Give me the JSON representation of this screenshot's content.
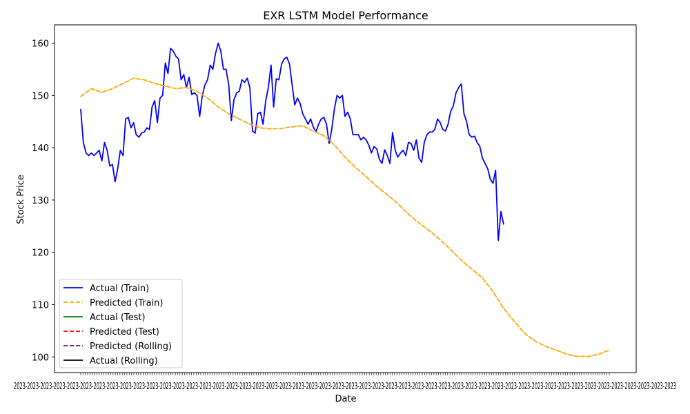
{
  "chart_data": {
    "type": "line",
    "title": "EXR LSTM Model Performance",
    "xlabel": "Date",
    "ylabel": "Stock Price",
    "xlim": [
      0,
      200
    ],
    "ylim": [
      97,
      163.5
    ],
    "yticks": [
      100,
      110,
      120,
      130,
      140,
      150,
      160
    ],
    "grid": false,
    "legend_position": "lower-left",
    "series": [
      {
        "name": "Actual (Train)",
        "color": "#0000ff",
        "dash": "solid",
        "x": [
          0,
          1,
          2,
          3,
          4,
          5,
          6,
          7,
          8,
          9,
          10,
          11,
          12,
          13,
          14,
          15,
          16,
          17,
          18,
          19,
          20,
          21,
          22,
          23,
          24,
          25,
          26,
          27,
          28,
          29,
          30,
          31,
          32,
          33,
          34,
          35,
          36,
          37,
          38,
          39,
          40,
          41,
          42,
          43,
          44,
          45,
          46,
          47,
          48,
          49,
          50,
          51,
          52,
          53,
          54,
          55,
          56,
          57,
          58,
          59,
          60,
          61,
          62,
          63,
          64,
          65,
          66,
          67,
          68,
          69,
          70,
          71,
          72,
          73,
          74,
          75,
          76,
          77,
          78,
          79,
          80,
          81,
          82,
          83,
          84,
          85,
          86,
          87,
          88,
          89,
          90,
          91,
          92,
          93,
          94,
          95,
          96,
          97,
          98,
          99,
          100,
          101,
          102,
          103,
          104,
          105,
          106,
          107,
          108,
          109,
          110,
          111,
          112,
          113,
          114,
          115,
          116,
          117,
          118,
          119,
          120,
          121,
          122,
          123,
          124,
          125,
          126,
          127,
          128,
          129,
          130,
          131,
          132,
          133,
          134,
          135,
          136,
          137,
          138,
          139,
          140,
          141,
          142,
          143,
          144,
          145,
          146,
          147,
          148,
          149,
          150,
          151,
          152,
          153,
          154,
          155,
          156,
          157,
          158,
          159,
          160
        ],
        "y": [
          147.3,
          141.0,
          139.0,
          138.5,
          139.0,
          138.5,
          139.0,
          139.5,
          137.5,
          141.0,
          139.5,
          136.5,
          136.8,
          133.5,
          136.0,
          139.5,
          138.5,
          145.5,
          145.8,
          143.8,
          144.8,
          142.5,
          142.0,
          142.8,
          143.0,
          143.8,
          143.5,
          147.8,
          149.0,
          144.8,
          149.5,
          150.0,
          156.2,
          154.2,
          159.0,
          158.5,
          157.5,
          157.0,
          153.0,
          154.0,
          151.5,
          153.5,
          150.2,
          150.5,
          150.0,
          146.0,
          150.0,
          152.0,
          153.0,
          155.8,
          155.0,
          158.0,
          160.0,
          158.5,
          155.0,
          155.0,
          152.0,
          145.2,
          149.2,
          150.5,
          150.8,
          153.0,
          152.5,
          153.3,
          151.5,
          143.2,
          142.8,
          146.5,
          146.8,
          144.5,
          149.0,
          151.5,
          155.8,
          147.8,
          153.2,
          153.0,
          156.0,
          157.0,
          157.3,
          156.0,
          152.0,
          148.2,
          149.5,
          148.5,
          146.5,
          145.5,
          144.5,
          145.5,
          144.0,
          143.0,
          144.5,
          145.5,
          145.8,
          144.5,
          140.8,
          143.5,
          147.5,
          150.0,
          149.5,
          150.0,
          146.0,
          146.8,
          145.5,
          142.5,
          142.5,
          142.5,
          141.5,
          142.0,
          141.5,
          140.5,
          139.0,
          140.2,
          139.8,
          137.8,
          137.0,
          139.6,
          138.5,
          137.0,
          142.9,
          139.5,
          138.2,
          139.0,
          139.5,
          138.5,
          141.0,
          140.8,
          139.5,
          141.5,
          138.0,
          137.2,
          141.0,
          142.5,
          143.0,
          143.0,
          143.5,
          145.5,
          144.8,
          143.5,
          143.2,
          144.5,
          147.0,
          148.0,
          150.5,
          151.5,
          152.2,
          146.5,
          145.0,
          142.5,
          142.0,
          142.2,
          141.0,
          140.3,
          138.0,
          137.0,
          136.0,
          134.0,
          133.2,
          135.7,
          122.3,
          127.8,
          125.4
        ]
      },
      {
        "name": "Predicted (Train)",
        "color": "#ffa500",
        "dash": "dashed",
        "x": [
          0,
          4,
          8,
          12,
          16,
          20,
          24,
          28,
          32,
          36,
          40,
          44,
          48,
          52,
          56,
          60,
          64,
          68,
          72,
          76,
          80,
          84,
          88,
          92,
          96,
          100,
          104,
          108,
          112,
          116,
          120,
          124,
          128,
          132,
          136,
          140,
          144,
          148,
          152,
          156,
          160,
          164,
          168,
          172,
          176,
          180,
          184,
          188,
          192,
          196,
          200
        ],
        "y": [
          149.8,
          151.3,
          150.6,
          151.3,
          152.3,
          153.3,
          153.0,
          152.3,
          151.8,
          151.3,
          151.5,
          150.8,
          149.5,
          147.8,
          146.5,
          145.5,
          144.5,
          143.8,
          143.6,
          143.7,
          144.0,
          144.2,
          143.2,
          142.3,
          140.5,
          138.2,
          136.2,
          134.5,
          132.6,
          131.0,
          129.3,
          127.3,
          125.6,
          124.1,
          122.4,
          120.5,
          118.5,
          116.8,
          115.1,
          112.5,
          109.3,
          106.8,
          104.5,
          103.0,
          102.0,
          101.3,
          100.5,
          100.1,
          100.1,
          100.5,
          101.3
        ]
      },
      {
        "name": "Actual (Test)",
        "color": "#008000",
        "dash": "solid",
        "x": [],
        "y": []
      },
      {
        "name": "Predicted (Test)",
        "color": "#ff0000",
        "dash": "dashed",
        "x": [],
        "y": []
      },
      {
        "name": "Predicted (Rolling)",
        "color": "#800080",
        "dash": "dashed",
        "x": [],
        "y": []
      },
      {
        "name": "Actual (Rolling)",
        "color": "#000000",
        "dash": "solid",
        "x": [],
        "y": []
      }
    ]
  }
}
